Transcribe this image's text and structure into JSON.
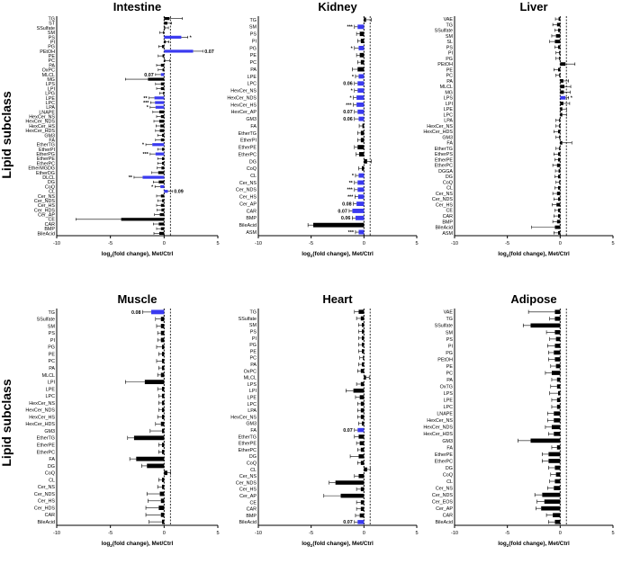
{
  "y_axis_label": "Lipid subclass",
  "colors": {
    "up": "#000000",
    "sig": "#3a3af0",
    "axis": "#000000"
  },
  "chart_data": [
    {
      "type": "bar",
      "orientation": "horizontal",
      "title": "Intestine",
      "xlabel_main": "log",
      "xlabel_sub": "2",
      "xlabel_rest": "(fold change), Met/Ctrl",
      "xlim": [
        -10,
        5
      ],
      "xticks": [
        "-10",
        "-5",
        "0",
        "5"
      ],
      "categories": [
        "TG",
        "ST",
        "SSulfate",
        "SM",
        "PS",
        "PI",
        "PG",
        "PEtOH",
        "PE",
        "PC",
        "PA",
        "OxPC",
        "MLCL",
        "MG",
        "LPS",
        "LPI",
        "LPG",
        "LPE",
        "LPC",
        "LPA",
        "LNAPE",
        "HexCer_NS",
        "HexCer_NDS",
        "HexCer_HS",
        "HexCer_HDS",
        "GM3",
        "FA",
        "EtherTG",
        "EtherPI",
        "EtherPG",
        "EtherPE",
        "EtherPC",
        "EtherMGDG",
        "EtherDG",
        "DLCL",
        "DG",
        "CoQ",
        "CL",
        "Cer_NS",
        "Cer_NDS",
        "Cer_HS",
        "Cer_HDS",
        "Cer_AP",
        "CE",
        "CAR",
        "BMP",
        "BileAcid"
      ],
      "values": [
        0.5,
        0.3,
        0.1,
        -0.1,
        1.6,
        0.15,
        -0.2,
        2.7,
        -0.15,
        0.1,
        -0.3,
        -0.15,
        -0.3,
        -1.5,
        -0.3,
        -0.3,
        -0.1,
        -0.9,
        -0.85,
        -0.8,
        -0.45,
        -0.3,
        -0.45,
        -0.35,
        -0.4,
        -0.2,
        -0.3,
        -1.1,
        -0.2,
        -0.8,
        -0.2,
        -0.2,
        -0.25,
        -0.55,
        -2.0,
        -0.5,
        -0.35,
        0.35,
        -0.3,
        -0.2,
        -0.3,
        -0.25,
        -0.4,
        -4.0,
        -0.5,
        -0.3,
        -0.45
      ],
      "errors": [
        1.2,
        0.4,
        0.3,
        0.3,
        0.6,
        0.3,
        0.3,
        0.9,
        0.4,
        0.4,
        0.4,
        0.4,
        0.5,
        2.1,
        0.5,
        0.4,
        0.3,
        0.5,
        0.4,
        0.5,
        0.6,
        0.4,
        0.5,
        0.4,
        0.4,
        0.4,
        0.5,
        0.6,
        0.4,
        0.5,
        0.4,
        0.4,
        0.4,
        0.6,
        0.8,
        0.5,
        0.5,
        0.4,
        0.4,
        0.4,
        0.4,
        0.4,
        0.5,
        4.2,
        0.5,
        0.4,
        0.5
      ],
      "significant": [
        false,
        false,
        false,
        false,
        true,
        false,
        false,
        true,
        false,
        false,
        false,
        false,
        true,
        false,
        false,
        false,
        false,
        true,
        true,
        true,
        false,
        false,
        false,
        false,
        false,
        false,
        false,
        true,
        false,
        true,
        false,
        false,
        false,
        false,
        true,
        false,
        true,
        true,
        false,
        false,
        false,
        false,
        false,
        false,
        false,
        false,
        false
      ],
      "annotations": {
        "4": "*",
        "7": "0.07",
        "12": "0.07",
        "17": "**",
        "18": "***",
        "19": "*",
        "27": "*",
        "29": "***",
        "34": "**",
        "36": "*",
        "37": "0.09"
      }
    },
    {
      "type": "bar",
      "orientation": "horizontal",
      "title": "Kidney",
      "xlabel_main": "log",
      "xlabel_sub": "2",
      "xlabel_rest": "(fold change), Met/Ctrl",
      "xlim": [
        -10,
        5
      ],
      "xticks": [
        "-10",
        "-5",
        "0",
        "5"
      ],
      "categories": [
        "TG",
        "SM",
        "PS",
        "PI",
        "PG",
        "PE",
        "PC",
        "PA",
        "LPE",
        "LPC",
        "HexCer_NS",
        "HexCer_NDS",
        "HexCer_HS",
        "HexCer_AP",
        "GM3",
        "FA",
        "EtherTG",
        "EtherPI",
        "EtherPE",
        "EtherPC",
        "DG",
        "CoQ",
        "CL",
        "Cer_NS",
        "Cer_NDS",
        "Cer_HS",
        "Cer_AP",
        "CAR",
        "BMP",
        "BileAcid",
        "ASM"
      ],
      "values": [
        0.2,
        -0.6,
        -0.4,
        -0.3,
        -0.5,
        -0.4,
        -0.3,
        -0.6,
        -0.5,
        -0.6,
        -0.6,
        -0.7,
        -0.7,
        -0.6,
        -0.5,
        -0.15,
        -0.3,
        -0.3,
        -0.6,
        -0.45,
        0.3,
        -0.2,
        -0.5,
        -0.6,
        -0.6,
        -0.55,
        -0.7,
        -1.1,
        -0.8,
        -4.8,
        -0.5
      ],
      "errors": [
        0.5,
        0.3,
        0.3,
        0.3,
        0.4,
        0.3,
        0.3,
        0.5,
        0.3,
        0.3,
        0.3,
        0.3,
        0.3,
        0.3,
        0.4,
        0.3,
        0.3,
        0.3,
        0.3,
        0.3,
        0.4,
        0.3,
        0.3,
        0.3,
        0.3,
        0.3,
        0.3,
        0.3,
        0.3,
        0.5,
        0.3
      ],
      "significant": [
        false,
        true,
        false,
        false,
        true,
        false,
        false,
        false,
        true,
        true,
        true,
        true,
        true,
        true,
        true,
        false,
        false,
        false,
        false,
        false,
        false,
        false,
        true,
        true,
        true,
        true,
        true,
        true,
        true,
        false,
        true
      ],
      "annotations": {
        "1": "***",
        "4": "*",
        "8": "*",
        "9": "0.06",
        "10": "*",
        "11": "*",
        "12": "***",
        "13": "0.07",
        "14": "0.06",
        "22": "*",
        "23": "**",
        "24": "***",
        "25": "***",
        "26": "0.08",
        "27": "0.07",
        "28": "0.06",
        "30": "***"
      }
    },
    {
      "type": "bar",
      "orientation": "horizontal",
      "title": "Liver",
      "xlabel_main": "log",
      "xlabel_sub": "2",
      "xlabel_rest": "(fold change), Met/Ctrl",
      "xlim": [
        -10,
        5
      ],
      "xticks": [
        "-10",
        "-5",
        "0",
        "5"
      ],
      "categories": [
        "VAE",
        "TG",
        "SSulfate",
        "SM",
        "SL",
        "PS",
        "PI",
        "PG",
        "PEtOH",
        "PE",
        "PC",
        "PA",
        "MLCL",
        "MG",
        "LPS",
        "LPI",
        "LPE",
        "LPC",
        "LPA",
        "HexCer_NS",
        "HexCer_HDS",
        "GM3",
        "FA",
        "EtherTG",
        "EtherPS",
        "EtherPE",
        "EtherPC",
        "DGGA",
        "DG",
        "CoQ",
        "CL",
        "Cer_NS",
        "Cer_NDS",
        "Cer_HS",
        "CE",
        "CAR",
        "BMP",
        "BileAcid",
        "ASM"
      ],
      "values": [
        -0.15,
        -0.3,
        -0.2,
        -0.4,
        -0.5,
        -0.2,
        -0.1,
        -0.1,
        0.5,
        -0.2,
        -0.1,
        0.3,
        0.4,
        0.35,
        0.5,
        0.3,
        0.2,
        0.2,
        -0.1,
        -0.1,
        -0.2,
        -0.1,
        0.2,
        -0.1,
        -0.2,
        -0.2,
        -0.3,
        -0.15,
        -0.2,
        -0.1,
        -0.2,
        -0.3,
        -0.2,
        -0.35,
        -0.2,
        -0.2,
        -0.3,
        -0.5,
        -0.2
      ],
      "errors": [
        0.3,
        0.4,
        0.3,
        0.4,
        0.5,
        0.3,
        0.3,
        0.3,
        0.9,
        0.4,
        0.3,
        0.5,
        0.6,
        0.6,
        0.3,
        0.6,
        0.4,
        0.4,
        0.3,
        0.3,
        0.4,
        0.3,
        0.9,
        0.3,
        0.4,
        0.3,
        0.4,
        0.3,
        0.3,
        0.3,
        0.3,
        0.4,
        0.4,
        0.4,
        0.3,
        0.4,
        0.4,
        2.2,
        0.4
      ],
      "significant": [
        false,
        false,
        false,
        false,
        false,
        false,
        false,
        false,
        false,
        false,
        false,
        false,
        false,
        false,
        true,
        false,
        false,
        false,
        false,
        false,
        false,
        false,
        false,
        false,
        false,
        false,
        false,
        false,
        false,
        false,
        false,
        false,
        false,
        false,
        false,
        false,
        false,
        false,
        false
      ],
      "annotations": {
        "14": "*"
      }
    },
    {
      "type": "bar",
      "orientation": "horizontal",
      "title": "Muscle",
      "xlabel_main": "log",
      "xlabel_sub": "2",
      "xlabel_rest": "(fold change), Met/Ctrl",
      "xlim": [
        -10,
        5
      ],
      "xticks": [
        "-10",
        "-5",
        "0",
        "5"
      ],
      "categories": [
        "TG",
        "SSulfate",
        "SM",
        "PS",
        "PI",
        "PG",
        "PE",
        "PC",
        "PA",
        "MLCL",
        "LPI",
        "LPE",
        "LPC",
        "HexCer_NS",
        "HexCer_NDS",
        "HexCer_HS",
        "HexCer_HDS",
        "GM3",
        "EtherTG",
        "EtherPE",
        "EtherPC",
        "FA",
        "DG",
        "CoQ",
        "CL",
        "Cer_NS",
        "Cer_NDS",
        "Cer_HS",
        "Cer_HDS",
        "CAR",
        "BileAcid"
      ],
      "values": [
        -1.2,
        -0.3,
        -0.3,
        -0.3,
        -0.3,
        -0.2,
        -0.2,
        -0.2,
        -0.2,
        -0.3,
        -1.8,
        -0.2,
        -0.2,
        -0.2,
        -0.2,
        -0.2,
        -0.3,
        -0.2,
        -2.8,
        -0.2,
        -0.2,
        -2.6,
        -1.6,
        0.3,
        -0.2,
        -0.2,
        -0.4,
        -0.3,
        -0.5,
        -0.3,
        -0.2
      ],
      "errors": [
        0.8,
        0.5,
        0.4,
        0.3,
        0.3,
        0.5,
        0.3,
        0.5,
        0.3,
        0.3,
        1.8,
        0.4,
        0.3,
        0.3,
        0.3,
        0.4,
        0.5,
        1.1,
        0.6,
        0.3,
        0.3,
        0.6,
        0.5,
        0.3,
        0.3,
        0.4,
        1.2,
        1.2,
        1.2,
        1.4,
        1.2
      ],
      "significant": [
        true,
        false,
        false,
        false,
        false,
        false,
        false,
        false,
        false,
        false,
        false,
        false,
        false,
        false,
        false,
        false,
        false,
        false,
        false,
        false,
        false,
        false,
        false,
        false,
        false,
        false,
        false,
        false,
        false,
        false,
        false
      ],
      "annotations": {
        "0": "0.08"
      }
    },
    {
      "type": "bar",
      "orientation": "horizontal",
      "title": "Heart",
      "xlabel_main": "log",
      "xlabel_sub": "2",
      "xlabel_rest": "(fold change), Met/Ctrl",
      "xlim": [
        -10,
        5
      ],
      "xticks": [
        "-10",
        "-5",
        "0",
        "5"
      ],
      "categories": [
        "TG",
        "SSulfate",
        "SM",
        "PS",
        "PI",
        "PG",
        "PE",
        "PC",
        "PA",
        "OxPC",
        "MLCL",
        "LPS",
        "LPI",
        "LPE",
        "LPC",
        "LPA",
        "HexCer_NS",
        "GM3",
        "FA",
        "EtherTG",
        "EtherPE",
        "EtherPC",
        "DG",
        "CoQ",
        "CL",
        "Cer_NS",
        "Cer_NDS",
        "Cer_HS",
        "Cer_AP",
        "CE",
        "CAR",
        "BMP",
        "BileAcid"
      ],
      "values": [
        -0.5,
        -0.3,
        -0.2,
        -0.2,
        -0.2,
        -0.2,
        -0.2,
        -0.1,
        -0.2,
        -0.3,
        0.2,
        -0.3,
        -1.0,
        -0.4,
        -0.3,
        -0.3,
        -0.3,
        -0.2,
        -0.6,
        -0.5,
        -0.4,
        -0.3,
        -0.5,
        -0.3,
        0.3,
        -0.5,
        -2.7,
        -0.3,
        -2.2,
        -0.3,
        -0.3,
        -0.4,
        -0.6
      ],
      "errors": [
        0.4,
        0.4,
        0.3,
        0.3,
        0.3,
        0.3,
        0.3,
        0.3,
        0.3,
        0.3,
        0.3,
        0.4,
        0.7,
        0.4,
        0.3,
        0.3,
        0.3,
        0.3,
        0.3,
        0.4,
        0.3,
        0.3,
        0.8,
        0.3,
        0.3,
        0.4,
        0.6,
        0.4,
        1.6,
        0.4,
        0.4,
        0.4,
        0.3
      ],
      "significant": [
        false,
        false,
        false,
        false,
        false,
        false,
        false,
        false,
        false,
        false,
        false,
        false,
        false,
        false,
        false,
        false,
        false,
        false,
        true,
        false,
        false,
        false,
        false,
        false,
        false,
        false,
        false,
        false,
        false,
        false,
        false,
        false,
        true
      ],
      "annotations": {
        "18": "0.07",
        "32": "0.07"
      }
    },
    {
      "type": "bar",
      "orientation": "horizontal",
      "title": "Adipose",
      "xlabel_main": "log",
      "xlabel_sub": "2",
      "xlabel_rest": "(fold change), Met/Ctrl",
      "xlim": [
        -10,
        5
      ],
      "xticks": [
        "-10",
        "-5",
        "0",
        "5"
      ],
      "categories": [
        "VAE",
        "TG",
        "SSulfate",
        "SM",
        "PS",
        "PI",
        "PG",
        "PEtOH",
        "PE",
        "PC",
        "PA",
        "OxTG",
        "LPS",
        "LPE",
        "LPC",
        "LNAPE",
        "HexCer_NS",
        "HexCer_NDS",
        "HexCer_HDS",
        "GM3",
        "FA",
        "EtherPE",
        "EtherPC",
        "DG",
        "CoQ",
        "CL",
        "Cer_NS",
        "Cer_NDS",
        "Cer_EOS",
        "Cer_AP",
        "CAR",
        "BileAcid"
      ],
      "values": [
        -0.5,
        -0.5,
        -2.8,
        -0.5,
        -0.4,
        -0.5,
        -0.6,
        -0.5,
        -0.4,
        -0.8,
        -0.3,
        -0.3,
        -0.2,
        -0.3,
        -0.3,
        -0.6,
        -0.6,
        -0.8,
        -0.6,
        -2.8,
        -0.3,
        -1.1,
        -1.1,
        -0.5,
        -0.4,
        -0.5,
        -0.6,
        -1.7,
        -1.5,
        -1.8,
        -0.7,
        -0.5
      ],
      "errors": [
        2.5,
        0.5,
        0.7,
        0.8,
        0.6,
        0.7,
        0.5,
        0.6,
        0.5,
        0.6,
        0.5,
        0.6,
        0.8,
        0.5,
        0.5,
        0.6,
        0.6,
        0.6,
        0.5,
        1.2,
        0.5,
        0.6,
        0.6,
        0.6,
        0.5,
        0.5,
        0.6,
        0.7,
        0.7,
        0.5,
        0.6,
        0.6
      ],
      "significant": [
        false,
        false,
        false,
        false,
        false,
        false,
        false,
        false,
        false,
        false,
        false,
        false,
        false,
        false,
        false,
        false,
        false,
        false,
        false,
        false,
        false,
        false,
        false,
        false,
        false,
        false,
        false,
        false,
        false,
        false,
        false,
        false
      ],
      "annotations": {}
    }
  ]
}
